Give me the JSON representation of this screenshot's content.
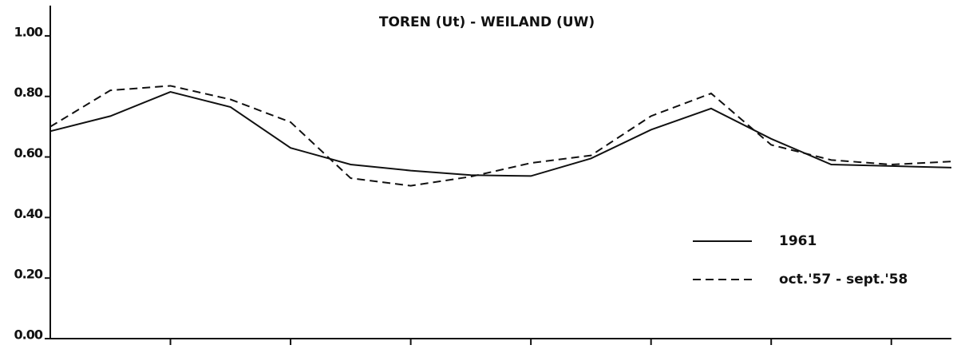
{
  "chart_data": {
    "type": "line",
    "title": "TOREN (Ut) - WEILAND (UW)",
    "x": [
      0,
      0.5,
      1,
      1.5,
      2,
      2.5,
      3,
      3.5,
      4,
      4.5,
      5,
      5.5,
      6,
      6.5,
      7,
      7.5
    ],
    "series": [
      {
        "name": "1961",
        "color": "#111111",
        "dash": "solid",
        "values": [
          0.685,
          0.735,
          0.815,
          0.765,
          0.63,
          0.575,
          0.555,
          0.54,
          0.537,
          0.595,
          0.69,
          0.76,
          0.66,
          0.575,
          0.57,
          0.565
        ]
      },
      {
        "name": "oct.'57 - sept.'58",
        "color": "#111111",
        "dash": "dashed",
        "values": [
          0.7,
          0.82,
          0.835,
          0.79,
          0.715,
          0.53,
          0.505,
          0.535,
          0.58,
          0.605,
          0.735,
          0.81,
          0.64,
          0.59,
          0.575,
          0.585
        ]
      }
    ],
    "xlim": [
      0,
      7.5
    ],
    "xticks": [
      1,
      2,
      3,
      4,
      5,
      6,
      7
    ],
    "ylim": [
      0,
      1.1
    ],
    "yticks": [
      {
        "value": 0,
        "label": "0.00"
      },
      {
        "value": 0.2,
        "label": "0.20"
      },
      {
        "value": 0.4,
        "label": "0.40"
      },
      {
        "value": 0.6,
        "label": "0.60"
      },
      {
        "value": 0.8,
        "label": "0.80"
      },
      {
        "value": 1,
        "label": "1.00"
      }
    ],
    "grid": false,
    "legend": "right"
  }
}
